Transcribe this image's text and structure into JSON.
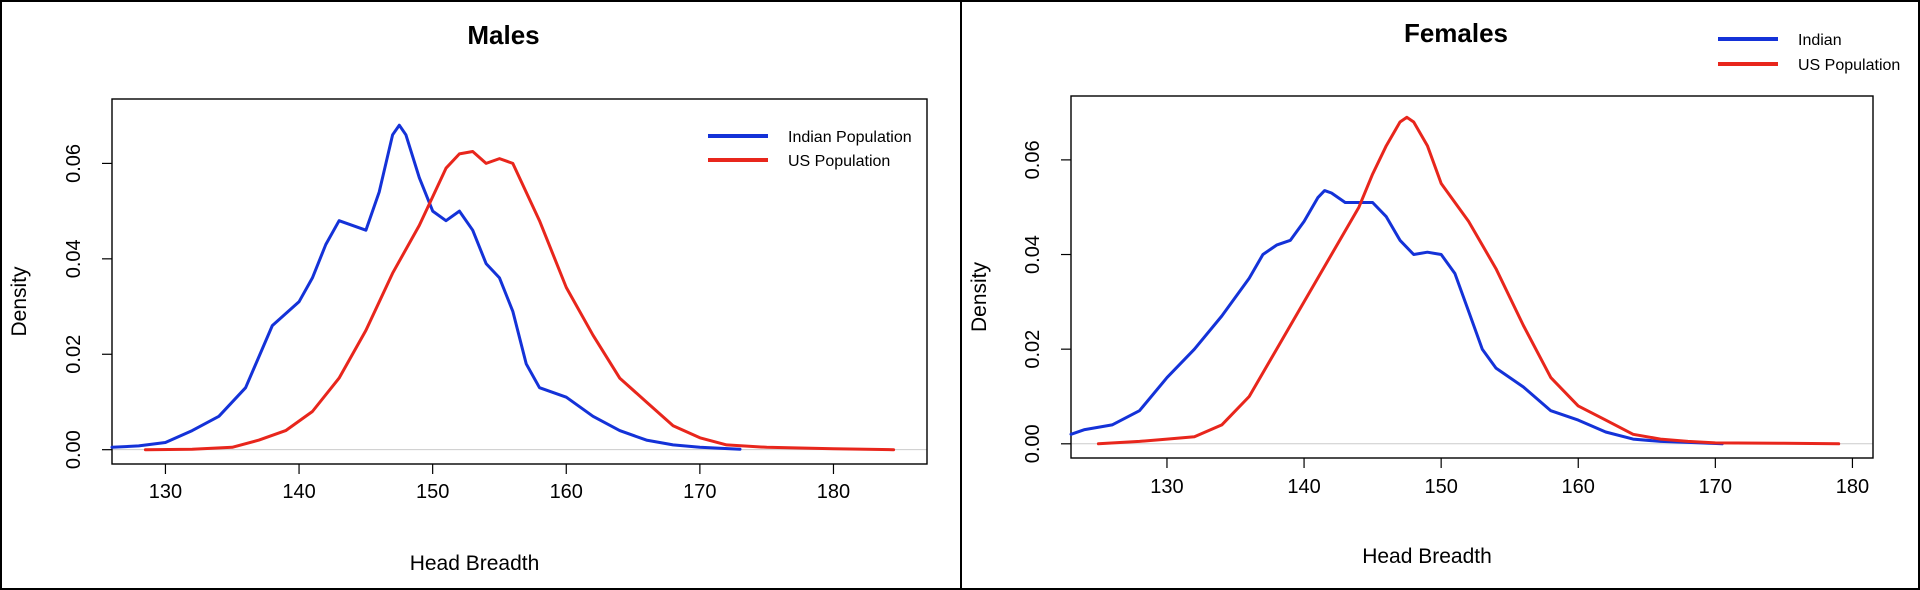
{
  "chart_data": [
    {
      "type": "line",
      "title": "Males",
      "xlabel": "Head Breadth",
      "ylabel": "Density",
      "xlim": [
        126,
        187
      ],
      "ylim": [
        -0.003,
        0.0735
      ],
      "xticks": [
        130,
        140,
        150,
        160,
        170,
        180
      ],
      "yticks": [
        0.0,
        0.02,
        0.04,
        0.06
      ],
      "ytick_labels": [
        "0.00",
        "0.02",
        "0.04",
        "0.06"
      ],
      "legend_position": "top-right",
      "grid": false,
      "series": [
        {
          "name": "Indian Population",
          "color": "#1432d8",
          "points": [
            [
              126,
              0.0005
            ],
            [
              128,
              0.0008
            ],
            [
              130,
              0.0015
            ],
            [
              132,
              0.004
            ],
            [
              134,
              0.007
            ],
            [
              136,
              0.013
            ],
            [
              138,
              0.026
            ],
            [
              140,
              0.031
            ],
            [
              141,
              0.036
            ],
            [
              142,
              0.043
            ],
            [
              143,
              0.048
            ],
            [
              144,
              0.047
            ],
            [
              145,
              0.046
            ],
            [
              146,
              0.054
            ],
            [
              147,
              0.066
            ],
            [
              147.5,
              0.068
            ],
            [
              148,
              0.066
            ],
            [
              149,
              0.057
            ],
            [
              150,
              0.05
            ],
            [
              151,
              0.048
            ],
            [
              152,
              0.05
            ],
            [
              153,
              0.046
            ],
            [
              154,
              0.039
            ],
            [
              155,
              0.036
            ],
            [
              156,
              0.029
            ],
            [
              157,
              0.018
            ],
            [
              158,
              0.013
            ],
            [
              159,
              0.012
            ],
            [
              160,
              0.011
            ],
            [
              162,
              0.007
            ],
            [
              164,
              0.004
            ],
            [
              166,
              0.002
            ],
            [
              168,
              0.001
            ],
            [
              170,
              0.0005
            ],
            [
              173,
              0.0001
            ]
          ]
        },
        {
          "name": "US Population",
          "color": "#e8261c",
          "points": [
            [
              128.5,
              0.0
            ],
            [
              132,
              0.0001
            ],
            [
              135,
              0.0005
            ],
            [
              137,
              0.002
            ],
            [
              139,
              0.004
            ],
            [
              141,
              0.008
            ],
            [
              143,
              0.015
            ],
            [
              145,
              0.025
            ],
            [
              147,
              0.037
            ],
            [
              149,
              0.047
            ],
            [
              150,
              0.053
            ],
            [
              151,
              0.059
            ],
            [
              152,
              0.062
            ],
            [
              153,
              0.0625
            ],
            [
              154,
              0.06
            ],
            [
              155,
              0.061
            ],
            [
              156,
              0.06
            ],
            [
              158,
              0.048
            ],
            [
              160,
              0.034
            ],
            [
              162,
              0.024
            ],
            [
              164,
              0.015
            ],
            [
              166,
              0.01
            ],
            [
              168,
              0.005
            ],
            [
              170,
              0.0025
            ],
            [
              172,
              0.001
            ],
            [
              175,
              0.0005
            ],
            [
              180,
              0.0002
            ],
            [
              184.5,
              0.0
            ]
          ]
        }
      ]
    },
    {
      "type": "line",
      "title": "Females",
      "xlabel": "Head Breadth",
      "ylabel": "Density",
      "xlim": [
        123,
        181.5
      ],
      "ylim": [
        -0.003,
        0.0735
      ],
      "xticks": [
        130,
        140,
        150,
        160,
        170,
        180
      ],
      "yticks": [
        0.0,
        0.02,
        0.04,
        0.06
      ],
      "ytick_labels": [
        "0.00",
        "0.02",
        "0.04",
        "0.06"
      ],
      "legend_position": "top-right",
      "grid": false,
      "series": [
        {
          "name": "Indian",
          "color": "#1432d8",
          "points": [
            [
              123,
              0.002
            ],
            [
              124,
              0.003
            ],
            [
              126,
              0.004
            ],
            [
              128,
              0.007
            ],
            [
              130,
              0.014
            ],
            [
              132,
              0.02
            ],
            [
              134,
              0.027
            ],
            [
              136,
              0.035
            ],
            [
              137,
              0.04
            ],
            [
              138,
              0.042
            ],
            [
              139,
              0.043
            ],
            [
              140,
              0.047
            ],
            [
              141,
              0.052
            ],
            [
              141.5,
              0.0535
            ],
            [
              142,
              0.053
            ],
            [
              143,
              0.051
            ],
            [
              144,
              0.051
            ],
            [
              145,
              0.051
            ],
            [
              146,
              0.048
            ],
            [
              147,
              0.043
            ],
            [
              148,
              0.04
            ],
            [
              149,
              0.0405
            ],
            [
              150,
              0.04
            ],
            [
              151,
              0.036
            ],
            [
              152,
              0.028
            ],
            [
              153,
              0.02
            ],
            [
              154,
              0.016
            ],
            [
              156,
              0.012
            ],
            [
              158,
              0.007
            ],
            [
              160,
              0.005
            ],
            [
              162,
              0.0025
            ],
            [
              164,
              0.001
            ],
            [
              166,
              0.0005
            ],
            [
              168,
              0.0003
            ],
            [
              170.5,
              0.0
            ]
          ]
        },
        {
          "name": "US Population",
          "color": "#e8261c",
          "points": [
            [
              125,
              0.0
            ],
            [
              128,
              0.0005
            ],
            [
              130,
              0.001
            ],
            [
              132,
              0.0015
            ],
            [
              134,
              0.004
            ],
            [
              136,
              0.01
            ],
            [
              138,
              0.02
            ],
            [
              140,
              0.03
            ],
            [
              142,
              0.04
            ],
            [
              144,
              0.05
            ],
            [
              145,
              0.057
            ],
            [
              146,
              0.063
            ],
            [
              147,
              0.068
            ],
            [
              147.5,
              0.069
            ],
            [
              148,
              0.068
            ],
            [
              149,
              0.063
            ],
            [
              150,
              0.055
            ],
            [
              152,
              0.047
            ],
            [
              154,
              0.037
            ],
            [
              156,
              0.025
            ],
            [
              158,
              0.014
            ],
            [
              160,
              0.008
            ],
            [
              162,
              0.005
            ],
            [
              164,
              0.002
            ],
            [
              166,
              0.001
            ],
            [
              168,
              0.0005
            ],
            [
              170,
              0.0002
            ],
            [
              175,
              0.0001
            ],
            [
              179,
              0.0
            ]
          ]
        }
      ]
    }
  ]
}
